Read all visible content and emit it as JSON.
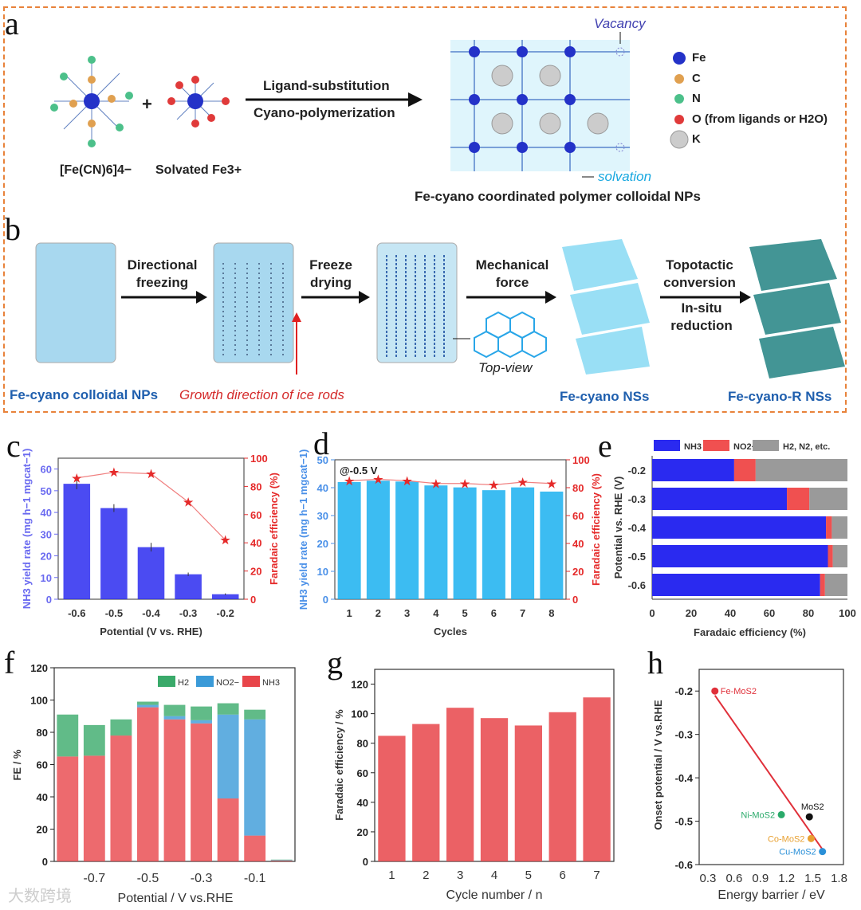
{
  "panel_a": {
    "letter": "a",
    "reactant1": "[Fe(CN)6]4−",
    "plus": "+",
    "reactant2": "Solvated Fe3+",
    "arrow_top": "Ligand-substitution",
    "arrow_bottom": "Cyano-polymerization",
    "product": "Fe-cyano coordinated polymer colloidal NPs",
    "vacancy": "Vacancy",
    "solvation": "solvation",
    "legend": [
      {
        "label": "Fe",
        "color": "#2432c8"
      },
      {
        "label": "C",
        "color": "#e0a050"
      },
      {
        "label": "N",
        "color": "#4cc08a"
      },
      {
        "label": "O (from ligands or H2O)",
        "color": "#e03a3a"
      },
      {
        "label": "K",
        "color": "#c8c8c8"
      }
    ]
  },
  "panel_b": {
    "letter": "b",
    "step1": "Directional freezing",
    "step2": "Freeze drying",
    "step3": "Mechanical force",
    "step4a": "Topotactic conversion",
    "step4b": "In-situ reduction",
    "top_view": "Top-view",
    "label1": "Fe-cyano colloidal NPs",
    "label2": "Growth direction of ice rods",
    "label3": "Fe-cyano NSs",
    "label4": "Fe-cyano-R NSs"
  },
  "letters": {
    "c": "c",
    "d": "d",
    "e": "e",
    "f": "f",
    "g": "g",
    "h": "h"
  },
  "watermark": "大数跨境",
  "chart_data": [
    {
      "id": "c",
      "type": "bar",
      "categories": [
        "-0.6",
        "-0.5",
        "-0.4",
        "-0.3",
        "-0.2"
      ],
      "series": [
        {
          "name": "NH3 yield rate",
          "values": [
            53.2,
            42.0,
            24.0,
            11.5,
            2.3
          ],
          "errors": [
            2.5,
            1.8,
            2.0,
            0.8,
            0.4
          ],
          "color": "#2b2bf0"
        },
        {
          "name": "Faradaic efficiency",
          "axis": "right",
          "type": "line",
          "values": [
            86,
            90,
            89,
            69,
            42
          ],
          "color": "#e52a2a"
        }
      ],
      "xlabel": "Potential (V vs. RHE)",
      "ylabel": "NH3 yield rate (mg h−1 mgcat−1)",
      "y2label": "Faradaic efficiency (%)",
      "ylim": [
        0,
        65
      ],
      "yticks": [
        "0",
        "10",
        "20",
        "30",
        "40",
        "50",
        "60"
      ],
      "y2lim": [
        0,
        100
      ],
      "y2ticks": [
        "0",
        "20",
        "40",
        "60",
        "80",
        "100"
      ]
    },
    {
      "id": "d",
      "type": "bar",
      "annotation": "@-0.5 V",
      "categories": [
        "1",
        "2",
        "3",
        "4",
        "5",
        "6",
        "7",
        "8"
      ],
      "series": [
        {
          "name": "NH3 yield rate",
          "values": [
            42.0,
            42.5,
            42.2,
            40.8,
            40.1,
            39.1,
            40.1,
            38.6
          ],
          "color": "#1ab0f0"
        },
        {
          "name": "Faradaic efficiency",
          "axis": "right",
          "type": "line",
          "values": [
            85,
            86,
            85,
            83,
            83,
            82,
            84,
            83
          ],
          "color": "#e52a2a"
        }
      ],
      "xlabel": "Cycles",
      "ylabel": "NH3 yield rate (mg h−1 mgcat−1)",
      "y2label": "Faradaic efficiency (%)",
      "ylim": [
        0,
        50
      ],
      "yticks": [
        "0",
        "10",
        "20",
        "30",
        "40",
        "50"
      ],
      "y2lim": [
        0,
        100
      ],
      "y2ticks": [
        "0",
        "20",
        "40",
        "60",
        "80",
        "100"
      ]
    },
    {
      "id": "e",
      "type": "bar",
      "orientation": "horizontal",
      "stacked": true,
      "categories": [
        "-0.2",
        "-0.3",
        "-0.4",
        "-0.5",
        "-0.6"
      ],
      "series": [
        {
          "name": "NH3",
          "values": [
            42,
            69,
            89,
            90,
            86
          ],
          "color": "#2a2af0"
        },
        {
          "name": "NO2−",
          "values": [
            11,
            11.5,
            3,
            2.5,
            2.5
          ],
          "color": "#f05050"
        },
        {
          "name": "H2, N2, etc.",
          "values": [
            47,
            19.5,
            8,
            7.5,
            11.5
          ],
          "color": "#9a9a9a"
        }
      ],
      "xlabel": "Faradaic efficiency (%)",
      "ylabel": "Potential vs. RHE (V)",
      "xlim": [
        0,
        100
      ],
      "xticks": [
        "0",
        "20",
        "40",
        "60",
        "80",
        "100"
      ],
      "legend": "top"
    },
    {
      "id": "f",
      "type": "bar",
      "stacked": true,
      "x": [
        -0.8,
        -0.7,
        -0.6,
        -0.5,
        -0.4,
        -0.3,
        -0.2,
        -0.1,
        0.0
      ],
      "xticks": [
        "-0.7",
        "-0.5",
        "-0.3",
        "-0.1"
      ],
      "series": [
        {
          "name": "NH3",
          "values": [
            65,
            65.5,
            78,
            95.5,
            88,
            85.5,
            39,
            16,
            0.5
          ],
          "color": "#e8454a"
        },
        {
          "name": "NO2−",
          "values": [
            0,
            0,
            0,
            1.5,
            2,
            2,
            52,
            72,
            0.3
          ],
          "color": "#3a9ad8"
        },
        {
          "name": "H2",
          "values": [
            26,
            19,
            10,
            2,
            7,
            8.5,
            7,
            6,
            0.3
          ],
          "color": "#3aaa6a"
        }
      ],
      "xlabel": "Potential / V vs.RHE",
      "ylabel": "FE / %",
      "ylim": [
        0,
        120
      ],
      "yticks": [
        "0",
        "20",
        "40",
        "60",
        "80",
        "100",
        "120"
      ],
      "legend": "top-right"
    },
    {
      "id": "g",
      "type": "bar",
      "categories": [
        "1",
        "2",
        "3",
        "4",
        "5",
        "6",
        "7"
      ],
      "series": [
        {
          "name": "Faradaic efficiency",
          "values": [
            85,
            93,
            104,
            97,
            92,
            101,
            111
          ],
          "color": "#e8454a"
        }
      ],
      "xlabel": "Cycle number / n",
      "ylabel": "Faradaic efficiency / %",
      "ylim": [
        0,
        130
      ],
      "yticks": [
        "0",
        "20",
        "40",
        "60",
        "80",
        "100",
        "120"
      ]
    },
    {
      "id": "h",
      "type": "scatter",
      "points": [
        {
          "label": "Fe-MoS2",
          "x": 0.38,
          "y": -0.2,
          "color": "#e0303a"
        },
        {
          "label": "Ni-MoS2",
          "x": 1.14,
          "y": -0.485,
          "color": "#2aaa6a"
        },
        {
          "label": "MoS2",
          "x": 1.46,
          "y": -0.49,
          "color": "#111111"
        },
        {
          "label": "Co-MoS2",
          "x": 1.48,
          "y": -0.54,
          "color": "#e8a030"
        },
        {
          "label": "Cu-MoS2",
          "x": 1.61,
          "y": -0.57,
          "color": "#2a90d8"
        }
      ],
      "fit_line": {
        "x": [
          0.38,
          1.61
        ],
        "y": [
          -0.21,
          -0.565
        ],
        "color": "#e0303a"
      },
      "xlabel": "Energy barrier / eV",
      "ylabel": "Onset potential / V vs.RHE",
      "xlim": [
        0.2,
        1.85
      ],
      "xticks": [
        "0.3",
        "0.6",
        "0.9",
        "1.2",
        "1.5",
        "1.8"
      ],
      "ylim": [
        -0.6,
        -0.15
      ],
      "yticks": [
        "-0.6",
        "-0.5",
        "-0.4",
        "-0.3",
        "-0.2"
      ]
    }
  ]
}
